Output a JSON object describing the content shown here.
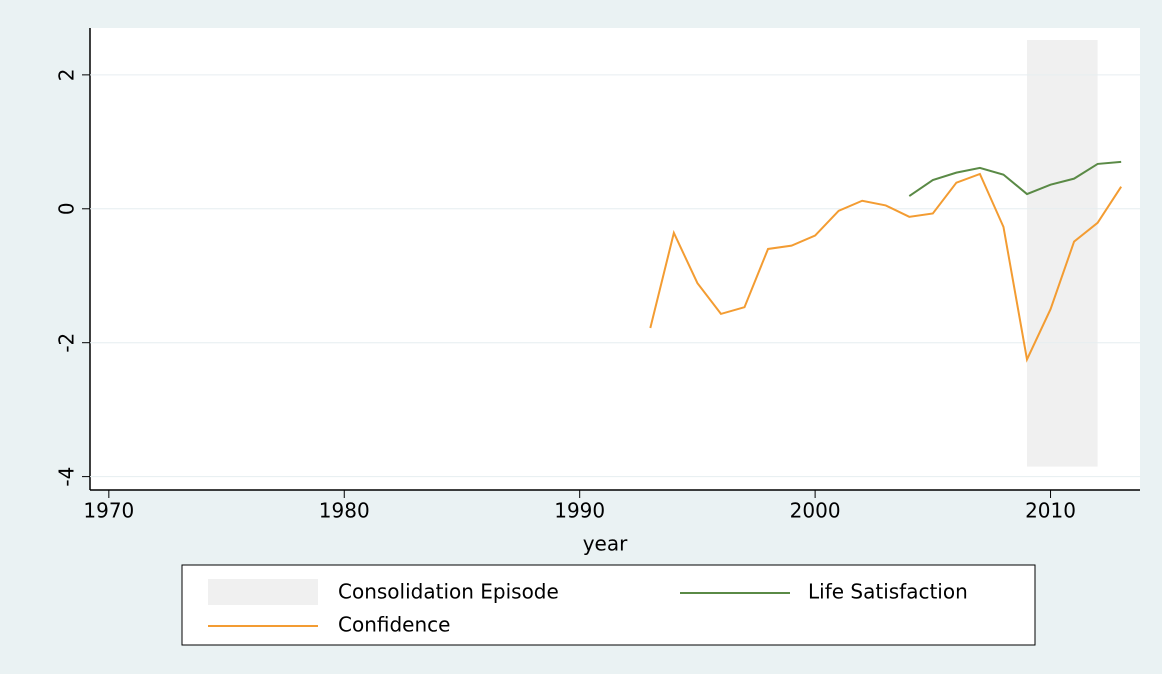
{
  "chart_data": {
    "type": "line",
    "x_label": "year",
    "xlim": [
      1969.2,
      2013.8
    ],
    "xticks": [
      1970,
      1980,
      1990,
      2000,
      2010
    ],
    "ylim": [
      -4.2,
      2.7
    ],
    "yticks": [
      -4,
      -2,
      0,
      2
    ],
    "grid": true,
    "band": {
      "name": "Consolidation Episode",
      "color": "#f0f0f0",
      "x": [
        2009,
        2012
      ],
      "y": [
        -3.85,
        2.52
      ]
    },
    "series": [
      {
        "name": "Life Satisfaction",
        "color": "#5a8a46",
        "x": [
          2004,
          2005,
          2006,
          2007,
          2008,
          2009,
          2010,
          2011,
          2012,
          2013
        ],
        "values": [
          0.19,
          0.43,
          0.54,
          0.61,
          0.51,
          0.22,
          0.36,
          0.45,
          0.67,
          0.7
        ]
      },
      {
        "name": "Confidence",
        "color": "#f39c32",
        "x": [
          1993,
          1994,
          1995,
          1996,
          1997,
          1998,
          1999,
          2000,
          2001,
          2002,
          2003,
          2004,
          2005,
          2006,
          2007,
          2008,
          2009,
          2010,
          2011,
          2012,
          2013
        ],
        "values": [
          -1.78,
          -0.36,
          -1.11,
          -1.57,
          -1.47,
          -0.6,
          -0.55,
          -0.4,
          -0.03,
          0.12,
          0.05,
          -0.12,
          -0.07,
          0.39,
          0.52,
          -0.27,
          -2.25,
          -1.5,
          -0.49,
          -0.21,
          0.33
        ]
      }
    ]
  }
}
